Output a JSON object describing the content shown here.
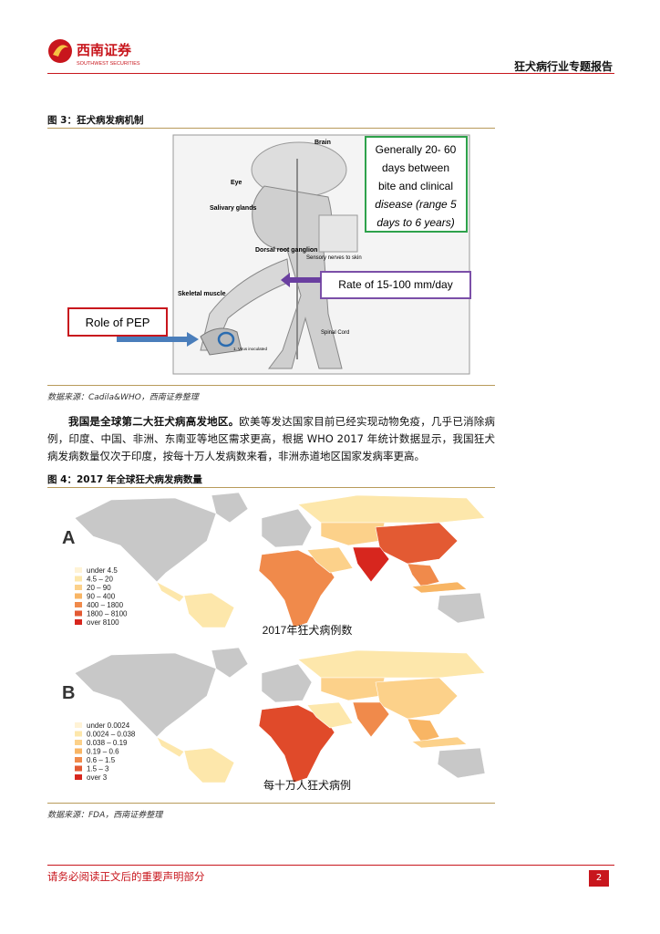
{
  "header": {
    "logo_name": "西南证券",
    "logo_sub": "SOUTHWEST SECURITIES",
    "report_title": "狂犬病行业专题报告"
  },
  "figure3": {
    "caption": "图 3：狂犬病发病机制",
    "diagram": {
      "brain": "Brain",
      "eye": "Eye",
      "salivary": "Salivary glands",
      "dorsal": "Dorsal root ganglion",
      "skeletal": "Skeletal muscle",
      "sensory": "Sensory nerves to skin",
      "spinal": "Spinal Cord",
      "inoculated": "1. Virus inoculated",
      "incubation": [
        "Generally 20- 60",
        "days between",
        "bite and clinical",
        "disease (range 5",
        "days to 6 years)"
      ],
      "rate": "Rate of 15-100 mm/day",
      "pep": "Role of PEP"
    },
    "source": "数据来源：Cadila&WHO，西南证券整理"
  },
  "body": {
    "lead": "我国是全球第二大狂犬病高发地区。",
    "text": "欧美等发达国家目前已经实现动物免疫，几乎已消除病例，印度、中国、非洲、东南亚等地区需求更高，根据 WHO 2017 年统计数据显示，我国狂犬病发病数量仅次于印度，按每十万人发病数来看，非洲赤道地区国家发病率更高。"
  },
  "figure4": {
    "caption": "图 4：2017 年全球狂犬病发病数量",
    "map_a": {
      "letter": "A",
      "legend": [
        "under 4.5",
        "4.5 – 20",
        "20 – 90",
        "90 – 400",
        "400 – 1800",
        "1800 – 8100",
        "over 8100"
      ],
      "caption": "2017年狂犬病例数"
    },
    "map_b": {
      "letter": "B",
      "legend": [
        "under 0.0024",
        "0.0024 – 0.038",
        "0.038 – 0.19",
        "0.19 – 0.6",
        "0.6 – 1.5",
        "1.5 – 3",
        "over 3"
      ],
      "caption": "每十万人狂犬病例"
    },
    "source": "数据来源：FDA，西南证券整理"
  },
  "footer": {
    "disclaimer": "请务必阅读正文后的重要声明部分",
    "page": "2"
  }
}
